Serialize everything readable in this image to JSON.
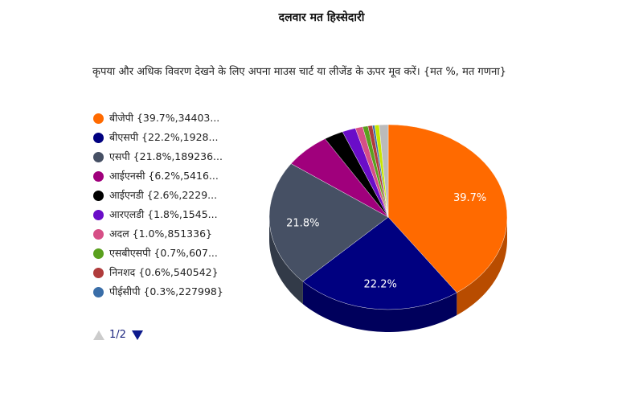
{
  "chart_data": {
    "type": "pie",
    "title": "दलवार मत हिस्सेदारी",
    "subtitle": "कृपया और अधिक विवरण देखने के लिए अपना माउस चार्ट या लीजेंड के ऊपर मूव करें। {मत %, मत गणना}",
    "slices": [
      {
        "name": "बीजेपी",
        "legend": "बीजेपी {39.7%,34403...",
        "percent": 39.7,
        "label": "39.7%",
        "color": "#ff6a00"
      },
      {
        "name": "बीएसपी",
        "legend": "बीएसपी {22.2%,1928...",
        "percent": 22.2,
        "label": "22.2%",
        "color": "#000080"
      },
      {
        "name": "एसपी",
        "legend": "एसपी {21.8%,189236...",
        "percent": 21.8,
        "label": "21.8%",
        "color": "#465064"
      },
      {
        "name": "आईएनसी",
        "legend": "आईएनसी {6.2%,5416...",
        "percent": 6.2,
        "label": "",
        "color": "#a0007c"
      },
      {
        "name": "आईएनडी",
        "legend": "आईएनडी {2.6%,2229...",
        "percent": 2.6,
        "label": "",
        "color": "#000000"
      },
      {
        "name": "आरएलडी",
        "legend": "आरएलडी {1.8%,1545...",
        "percent": 1.8,
        "label": "",
        "color": "#6a0dc8"
      },
      {
        "name": "अदल",
        "legend": "अदल {1.0%,851336}",
        "percent": 1.0,
        "label": "",
        "color": "#d64f86"
      },
      {
        "name": "एसबीएसपी",
        "legend": "एसबीएसपी {0.7%,607...",
        "percent": 0.7,
        "label": "",
        "color": "#5aa01e"
      },
      {
        "name": "निनशद",
        "legend": "निनशद {0.6%,540542}",
        "percent": 0.6,
        "label": "",
        "color": "#b03c3c"
      },
      {
        "name": "पीईसीपी",
        "legend": "पीईसीपी {0.3%,227998}",
        "percent": 0.3,
        "label": "",
        "color": "#3a6ea8"
      },
      {
        "name": "",
        "legend": "",
        "percent": 0.6,
        "label": "",
        "color": "#c8e600"
      },
      {
        "name": "",
        "legend": "",
        "percent": 1.2,
        "label": "",
        "color": "#bbbbbb"
      }
    ],
    "legend_position": "left",
    "legend_page": "1/2"
  }
}
